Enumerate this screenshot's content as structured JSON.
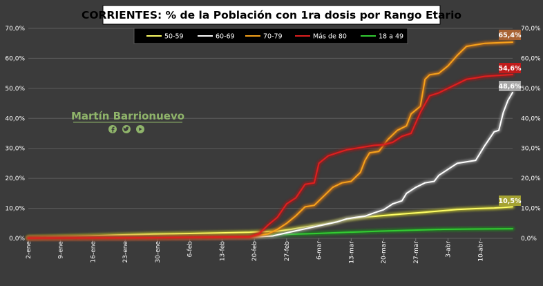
{
  "chart_data": {
    "type": "line",
    "title": "CORRIENTES: % de la Población con 1ra dosis por Rango Etario",
    "xlabel": "",
    "ylabel": "",
    "ylim": [
      0,
      70
    ],
    "y_ticks": [
      "0,0%",
      "10,0%",
      "20,0%",
      "30,0%",
      "40,0%",
      "50,0%",
      "60,0%",
      "70,0%"
    ],
    "x_ticks": [
      "2-ene",
      "9-ene",
      "16-ene",
      "23-ene",
      "30-ene",
      "6-feb",
      "13-feb",
      "20-feb",
      "27-feb",
      "6-mar",
      "13-mar",
      "20-mar",
      "27-mar",
      "3-abr",
      "10-abr"
    ],
    "x_range_days": [
      1,
      106
    ],
    "grid": true,
    "legend_position": "top",
    "background": "#3b3b3b",
    "series": [
      {
        "name": "50-59",
        "color": "#ffff66",
        "glow": "#bcbc2a",
        "points": [
          [
            1,
            0.3
          ],
          [
            14,
            0.8
          ],
          [
            20,
            1.1
          ],
          [
            28,
            1.4
          ],
          [
            35,
            1.6
          ],
          [
            42,
            1.8
          ],
          [
            49,
            2.0
          ],
          [
            55,
            2.4
          ],
          [
            58,
            3.0
          ],
          [
            62,
            4.0
          ],
          [
            66,
            5.0
          ],
          [
            70,
            6.3
          ],
          [
            74,
            7.1
          ],
          [
            78,
            7.6
          ],
          [
            82,
            8.1
          ],
          [
            86,
            8.6
          ],
          [
            90,
            9.1
          ],
          [
            94,
            9.6
          ],
          [
            98,
            9.9
          ],
          [
            102,
            10.1
          ],
          [
            106,
            10.5
          ]
        ]
      },
      {
        "name": "60-69",
        "color": "#ffffff",
        "glow": "#9a9a9a",
        "points": [
          [
            1,
            0.1
          ],
          [
            28,
            0.2
          ],
          [
            49,
            0.4
          ],
          [
            54,
            0.8
          ],
          [
            56,
            1.5
          ],
          [
            59,
            2.5
          ],
          [
            62,
            3.5
          ],
          [
            65,
            4.5
          ],
          [
            68,
            5.5
          ],
          [
            70,
            6.5
          ],
          [
            72,
            7.0
          ],
          [
            74,
            7.4
          ],
          [
            76,
            8.5
          ],
          [
            78,
            9.5
          ],
          [
            80,
            11.5
          ],
          [
            82,
            12.5
          ],
          [
            83,
            15.0
          ],
          [
            85,
            17.0
          ],
          [
            87,
            18.5
          ],
          [
            89,
            19.0
          ],
          [
            90,
            21.0
          ],
          [
            92,
            23.0
          ],
          [
            94,
            25.0
          ],
          [
            96,
            25.5
          ],
          [
            98,
            26.0
          ],
          [
            100,
            31.0
          ],
          [
            102,
            35.5
          ],
          [
            103,
            36.0
          ],
          [
            104,
            42.0
          ],
          [
            105,
            46.0
          ],
          [
            106,
            48.6
          ]
        ]
      },
      {
        "name": "70-79",
        "color": "#f7a21b",
        "glow": "#c46e12",
        "points": [
          [
            1,
            0.1
          ],
          [
            28,
            0.2
          ],
          [
            49,
            0.5
          ],
          [
            53,
            1.5
          ],
          [
            55,
            3.0
          ],
          [
            57,
            5.0
          ],
          [
            59,
            7.5
          ],
          [
            61,
            10.5
          ],
          [
            63,
            11.0
          ],
          [
            65,
            14.0
          ],
          [
            67,
            17.0
          ],
          [
            69,
            18.5
          ],
          [
            71,
            19.0
          ],
          [
            73,
            22.0
          ],
          [
            74,
            26.0
          ],
          [
            75,
            28.5
          ],
          [
            77,
            29.0
          ],
          [
            79,
            33.0
          ],
          [
            81,
            36.0
          ],
          [
            83,
            37.5
          ],
          [
            84,
            41.5
          ],
          [
            86,
            44.0
          ],
          [
            87,
            53.0
          ],
          [
            88,
            54.5
          ],
          [
            90,
            55.0
          ],
          [
            92,
            57.5
          ],
          [
            94,
            61.0
          ],
          [
            96,
            64.0
          ],
          [
            98,
            64.5
          ],
          [
            100,
            65.0
          ],
          [
            106,
            65.4
          ]
        ]
      },
      {
        "name": "Más de 80",
        "color": "#e01f1f",
        "glow": "#a81414",
        "points": [
          [
            1,
            0.1
          ],
          [
            28,
            0.2
          ],
          [
            49,
            0.5
          ],
          [
            51,
            1.5
          ],
          [
            53,
            4.5
          ],
          [
            55,
            7.0
          ],
          [
            57,
            11.5
          ],
          [
            59,
            13.5
          ],
          [
            61,
            18.0
          ],
          [
            63,
            18.5
          ],
          [
            64,
            25.0
          ],
          [
            66,
            27.5
          ],
          [
            68,
            28.5
          ],
          [
            70,
            29.5
          ],
          [
            72,
            30.0
          ],
          [
            74,
            30.5
          ],
          [
            76,
            31.0
          ],
          [
            78,
            31.2
          ],
          [
            80,
            32.0
          ],
          [
            82,
            34.0
          ],
          [
            84,
            35.0
          ],
          [
            86,
            42.0
          ],
          [
            88,
            47.5
          ],
          [
            90,
            48.5
          ],
          [
            92,
            50.0
          ],
          [
            94,
            51.5
          ],
          [
            96,
            53.0
          ],
          [
            98,
            53.5
          ],
          [
            100,
            54.0
          ],
          [
            106,
            54.6
          ]
        ]
      },
      {
        "name": "18 a 49",
        "color": "#33cc33",
        "glow": "#1f8f1f",
        "points": [
          [
            1,
            0.2
          ],
          [
            14,
            0.4
          ],
          [
            28,
            0.6
          ],
          [
            42,
            0.8
          ],
          [
            49,
            1.0
          ],
          [
            56,
            1.3
          ],
          [
            63,
            1.6
          ],
          [
            70,
            2.0
          ],
          [
            77,
            2.4
          ],
          [
            84,
            2.7
          ],
          [
            91,
            3.0
          ],
          [
            98,
            3.1
          ],
          [
            106,
            3.2
          ]
        ]
      }
    ],
    "callouts": [
      {
        "text": "65,4%",
        "value": 65.4,
        "series": "70-79",
        "box_color": "#a86334"
      },
      {
        "text": "54,6%",
        "value": 54.6,
        "series": "Más de 80",
        "box_color": "#c01b1b"
      },
      {
        "text": "48,6%",
        "value": 48.6,
        "series": "60-69",
        "box_color": "#a6a6a6"
      },
      {
        "text": "10,5%",
        "value": 10.5,
        "series": "50-59",
        "box_color": "#a4a233"
      }
    ]
  },
  "watermark": {
    "text": "Martín Barrionuevo",
    "color": "#8fb46a",
    "icons": [
      "facebook-icon",
      "twitter-icon",
      "youtube-icon"
    ]
  }
}
